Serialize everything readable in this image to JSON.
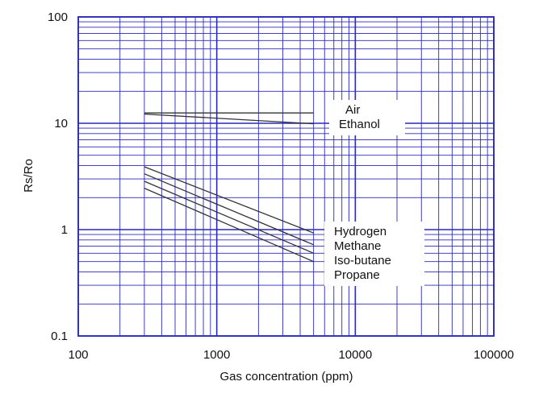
{
  "chart_data": {
    "type": "line",
    "title": "",
    "xlabel": "Gas concentration (ppm)",
    "ylabel": "Rs/Ro",
    "xscale": "log",
    "yscale": "log",
    "xlim": [
      100,
      100000
    ],
    "ylim": [
      0.1,
      100
    ],
    "grid": true,
    "x_tick_labels": [
      "100",
      "1000",
      "10000",
      "100000"
    ],
    "y_tick_labels": [
      "0.1",
      "1",
      "10",
      "100"
    ],
    "legend_position": "right",
    "series": [
      {
        "name": "Air",
        "x": [
          300,
          5000
        ],
        "y": [
          12.5,
          12.5
        ]
      },
      {
        "name": "Ethanol",
        "x": [
          300,
          5000
        ],
        "y": [
          12.2,
          9.9
        ]
      },
      {
        "name": "Hydrogen",
        "x": [
          300,
          5000
        ],
        "y": [
          3.9,
          0.93
        ]
      },
      {
        "name": "Methane",
        "x": [
          300,
          5000
        ],
        "y": [
          3.35,
          0.72
        ]
      },
      {
        "name": "Iso-butane",
        "x": [
          300,
          5000
        ],
        "y": [
          2.85,
          0.6
        ]
      },
      {
        "name": "Propane",
        "x": [
          300,
          5000
        ],
        "y": [
          2.45,
          0.5
        ]
      }
    ],
    "colors": {
      "grid": "#2a2ab8",
      "line": "#333333",
      "text": "#111111"
    }
  }
}
